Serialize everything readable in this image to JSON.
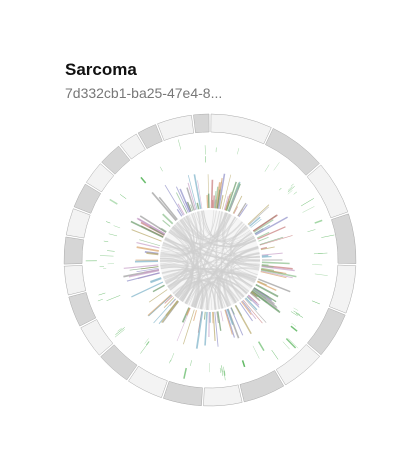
{
  "card": {
    "title": "Sarcoma",
    "subtitle": "7d332cb1-ba25-47e4-8..."
  },
  "circos": {
    "segment_count": 24,
    "colors": {
      "segment_alt_a": "#d6d6d6",
      "segment_alt_b": "#f3f3f3",
      "segment_stroke": "#aaaaaa",
      "inner_circle": "#eeeeee",
      "links": "#cfcfcf",
      "mutation_track": "#4caf50",
      "histogram_palette": [
        "#8e8ec8",
        "#d9a36a",
        "#8cbf8c",
        "#c87b7b",
        "#7bb0c8",
        "#b8a86a",
        "#9a9a9a",
        "#6a9a6a",
        "#c8a0c8"
      ]
    }
  }
}
